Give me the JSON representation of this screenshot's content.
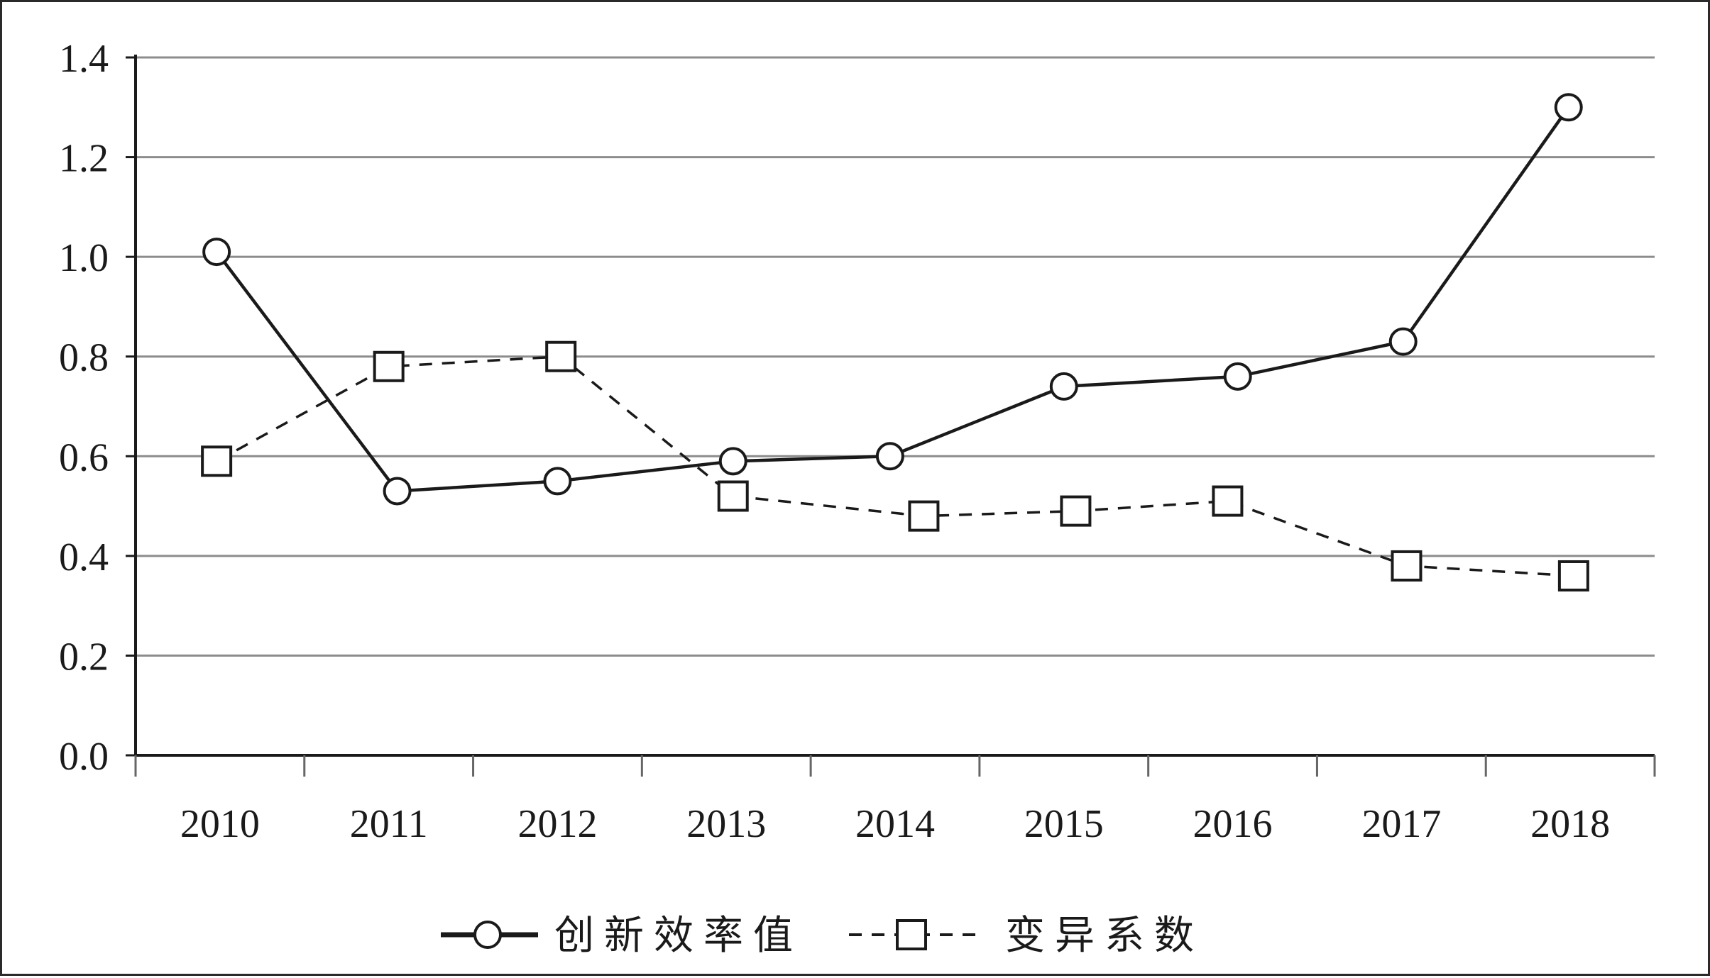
{
  "chart_data": {
    "type": "line",
    "title": "",
    "xlabel": "",
    "ylabel": "",
    "categories": [
      "2010",
      "2011",
      "2012",
      "2013",
      "2014",
      "2015",
      "2016",
      "2017",
      "2018"
    ],
    "ylim": [
      0,
      1.4
    ],
    "yticks": [
      "0.0",
      "0.2",
      "0.4",
      "0.6",
      "0.8",
      "1.0",
      "1.2",
      "1.4"
    ],
    "grid": true,
    "legend_position": "bottom",
    "series": [
      {
        "name": "创新效率值",
        "marker": "circle",
        "line_style": "solid",
        "values": [
          1.01,
          0.53,
          0.55,
          0.59,
          0.6,
          0.74,
          0.76,
          0.83,
          1.3
        ],
        "x_positions": [
          0.48,
          1.55,
          2.5,
          3.54,
          4.47,
          5.5,
          6.53,
          7.51,
          8.49
        ]
      },
      {
        "name": "变异系数",
        "marker": "square",
        "line_style": "dashed",
        "values": [
          0.59,
          0.78,
          0.8,
          0.52,
          0.48,
          0.49,
          0.51,
          0.38,
          0.36
        ],
        "x_positions": [
          0.48,
          1.5,
          2.52,
          3.54,
          4.67,
          5.57,
          6.47,
          7.53,
          8.52
        ]
      }
    ],
    "colors": {
      "axis": "#1a1a1a",
      "grid": "#8c8c8c",
      "line": "#1a1a1a",
      "marker_fill": "#ffffff"
    }
  }
}
